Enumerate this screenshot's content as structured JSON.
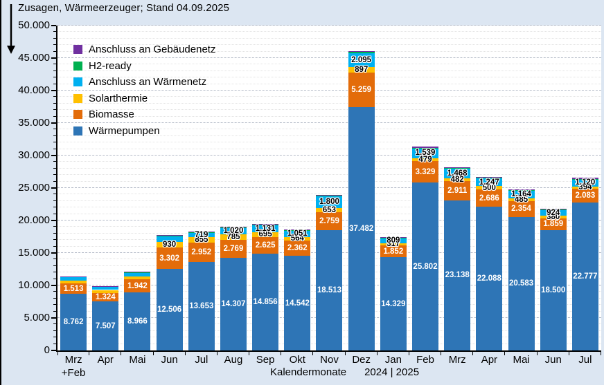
{
  "title": "Zusagen, Wärmeerzeuger; Stand 04.09.2025",
  "colors": {
    "background": "#dce6f2",
    "plot_background": "#ffffff",
    "waermepumpen": "#2e75b6",
    "biomasse": "#e36c0a",
    "solarthermie": "#ffc000",
    "waermenetz": "#00b0f0",
    "h2ready": "#00b050",
    "gebaeudenetz": "#7030a0"
  },
  "legend": {
    "items": [
      {
        "label": "Anschluss an Gebäudenetz",
        "color": "#7030a0"
      },
      {
        "label": "H2-ready",
        "color": "#00b050"
      },
      {
        "label": "Anschluss an Wärmenetz",
        "color": "#00b0f0"
      },
      {
        "label": "Solarthermie",
        "color": "#ffc000"
      },
      {
        "label": "Biomasse",
        "color": "#e36c0a"
      },
      {
        "label": "Wärmepumpen",
        "color": "#2e75b6"
      }
    ]
  },
  "y_axis": {
    "tick_labels": [
      "0",
      "5.000",
      "10.000",
      "15.000",
      "20.000",
      "25.000",
      "30.000",
      "35.000",
      "40.000",
      "45.000",
      "50.000"
    ]
  },
  "x_axis": {
    "label": "Kalendermonate",
    "period": "2024 | 2025",
    "category_lines": [
      [
        "Mrz",
        "+Feb"
      ],
      [
        "Apr"
      ],
      [
        "Mai"
      ],
      [
        "Jun"
      ],
      [
        "Jul"
      ],
      [
        "Aug"
      ],
      [
        "Sep"
      ],
      [
        "Okt"
      ],
      [
        "Nov"
      ],
      [
        "Dez"
      ],
      [
        "Jan"
      ],
      [
        "Feb"
      ],
      [
        "Mrz"
      ],
      [
        "Apr"
      ],
      [
        "Mai"
      ],
      [
        "Jun"
      ],
      [
        "Jul"
      ]
    ]
  },
  "chart_data": {
    "type": "bar",
    "stacked": true,
    "title": "Zusagen, Wärmeerzeuger; Stand 04.09.2025",
    "xlabel": "Kalendermonate",
    "x_period": "2024 | 2025",
    "ylim": [
      0,
      50000
    ],
    "y_major_step": 5000,
    "y_minor_step": 1000,
    "grid": "on",
    "legend_position": "upper-left-inside",
    "categories": [
      "Mrz+Feb",
      "Apr",
      "Mai",
      "Jun",
      "Jul",
      "Aug",
      "Sep",
      "Okt",
      "Nov",
      "Dez",
      "Jan",
      "Feb",
      "Mrz",
      "Apr",
      "Mai",
      "Jun",
      "Jul"
    ],
    "series": [
      {
        "name": "Wärmepumpen",
        "color": "#2e75b6",
        "label_style": "white",
        "values": [
          8762,
          7507,
          8966,
          12506,
          13653,
          14307,
          14856,
          14542,
          18513,
          37482,
          14329,
          25802,
          23138,
          22088,
          20583,
          18500,
          22777
        ],
        "labels": [
          "8.762",
          "7.507",
          "8.966",
          "12.506",
          "13.653",
          "14.307",
          "14.856",
          "14.542",
          "18.513",
          "37.482",
          "14.329",
          "25.802",
          "23.138",
          "22.088",
          "20.583",
          "18.500",
          "22.777"
        ]
      },
      {
        "name": "Biomasse",
        "color": "#e36c0a",
        "label_style": "white",
        "values": [
          1513,
          1324,
          1942,
          3302,
          2952,
          2769,
          2625,
          2362,
          2759,
          5259,
          1852,
          3329,
          2911,
          2686,
          2354,
          1859,
          2083
        ],
        "labels": [
          "1.513",
          "1.324",
          "1.942",
          "3.302",
          "2.952",
          "2.769",
          "2.625",
          "2.362",
          "2.759",
          "5.259",
          "1.852",
          "3.329",
          "2.911",
          "2.686",
          "2.354",
          "1.859",
          "2.083"
        ]
      },
      {
        "name": "Solarthermie",
        "color": "#ffc000",
        "label_style": "black",
        "values": [
          500,
          480,
          500,
          930,
          855,
          785,
          695,
          564,
          653,
          897,
          317,
          479,
          482,
          500,
          485,
          380,
          394
        ],
        "labels": [
          "",
          "",
          "",
          "930",
          "855",
          "785",
          "695",
          "564",
          "653",
          "897",
          "317",
          "479",
          "482",
          "500",
          "485",
          "380",
          "394"
        ]
      },
      {
        "name": "Anschluss an Wärmenetz",
        "color": "#00b0f0",
        "label_style": "black",
        "values": [
          600,
          600,
          640,
          900,
          719,
          1020,
          1131,
          1051,
          1800,
          2095,
          809,
          1539,
          1468,
          1247,
          1164,
          924,
          1120
        ],
        "labels": [
          "",
          "",
          "",
          "",
          "719",
          "1.020",
          "1.131",
          "1.051",
          "1.800",
          "2.095",
          "809",
          "1.539",
          "1.468",
          "1.247",
          "1.164",
          "924",
          "1.120"
        ]
      },
      {
        "name": "H2-ready",
        "color": "#00b050",
        "label_style": "none",
        "values": [
          15,
          15,
          20,
          40,
          40,
          40,
          40,
          40,
          60,
          180,
          40,
          60,
          60,
          60,
          50,
          40,
          50
        ],
        "labels": [
          "",
          "",
          "",
          "",
          "",
          "",
          "",
          "",
          "",
          "",
          "",
          "",
          "",
          "",
          "",
          "",
          ""
        ]
      },
      {
        "name": "Anschluss an Gebäudenetz",
        "color": "#7030a0",
        "label_style": "none",
        "values": [
          25,
          20,
          40,
          60,
          110,
          90,
          90,
          80,
          110,
          140,
          110,
          140,
          140,
          120,
          110,
          90,
          150
        ],
        "labels": [
          "",
          "",
          "",
          "",
          "",
          "",
          "",
          "",
          "",
          "",
          "",
          "",
          "",
          "",
          "",
          "",
          ""
        ]
      }
    ]
  }
}
